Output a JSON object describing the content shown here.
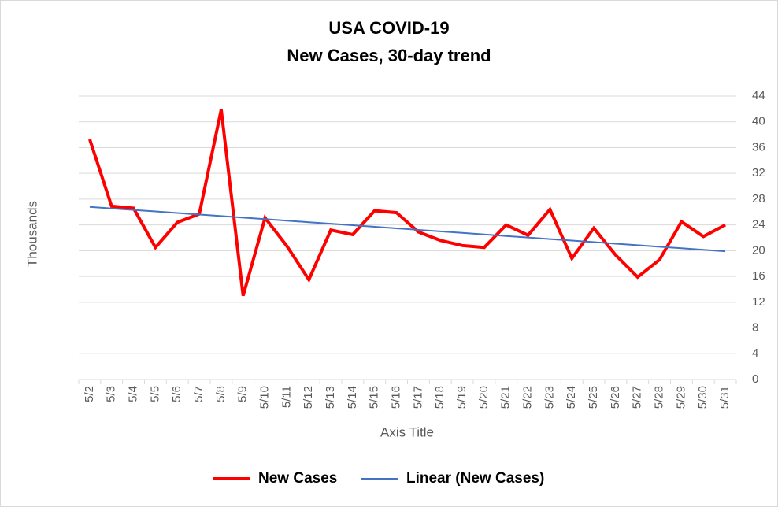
{
  "chart_data": {
    "type": "line",
    "title": "USA COVID-19",
    "subtitle": "New Cases, 30-day trend",
    "y_axis_label": "Thousands",
    "x_axis_label": "Axis Title",
    "categories": [
      "5/2",
      "5/3",
      "5/4",
      "5/5",
      "5/6",
      "5/7",
      "5/8",
      "5/9",
      "5/10",
      "5/11",
      "5/12",
      "5/13",
      "5/14",
      "5/15",
      "5/16",
      "5/17",
      "5/18",
      "5/19",
      "5/20",
      "5/21",
      "5/22",
      "5/23",
      "5/24",
      "5/25",
      "5/26",
      "5/27",
      "5/28",
      "5/29",
      "5/30",
      "5/31"
    ],
    "series": [
      {
        "name": "New Cases",
        "color": "#ff0000",
        "values": [
          37.3,
          26.9,
          26.6,
          20.5,
          24.4,
          25.7,
          41.9,
          13.0,
          25.1,
          20.7,
          15.5,
          23.2,
          22.5,
          26.2,
          25.9,
          22.9,
          21.6,
          20.8,
          20.5,
          24.0,
          22.4,
          26.4,
          18.8,
          23.5,
          19.3,
          15.9,
          18.6,
          24.5,
          22.2,
          24.0
        ]
      },
      {
        "name": "Linear (New Cases)",
        "color": "#4472c4",
        "values": [
          26.8,
          26.56,
          26.32,
          26.09,
          25.85,
          25.61,
          25.37,
          25.13,
          24.9,
          24.66,
          24.42,
          24.18,
          23.95,
          23.71,
          23.47,
          23.23,
          22.99,
          22.76,
          22.52,
          22.28,
          22.04,
          21.8,
          21.57,
          21.33,
          21.09,
          20.85,
          20.61,
          20.38,
          20.14,
          19.9
        ]
      }
    ],
    "ylim": [
      0,
      44
    ],
    "yticks": [
      0,
      4,
      8,
      12,
      16,
      20,
      24,
      28,
      32,
      36,
      40,
      44
    ],
    "y_axis_side": "right",
    "grid": true,
    "legend": "bottom"
  }
}
